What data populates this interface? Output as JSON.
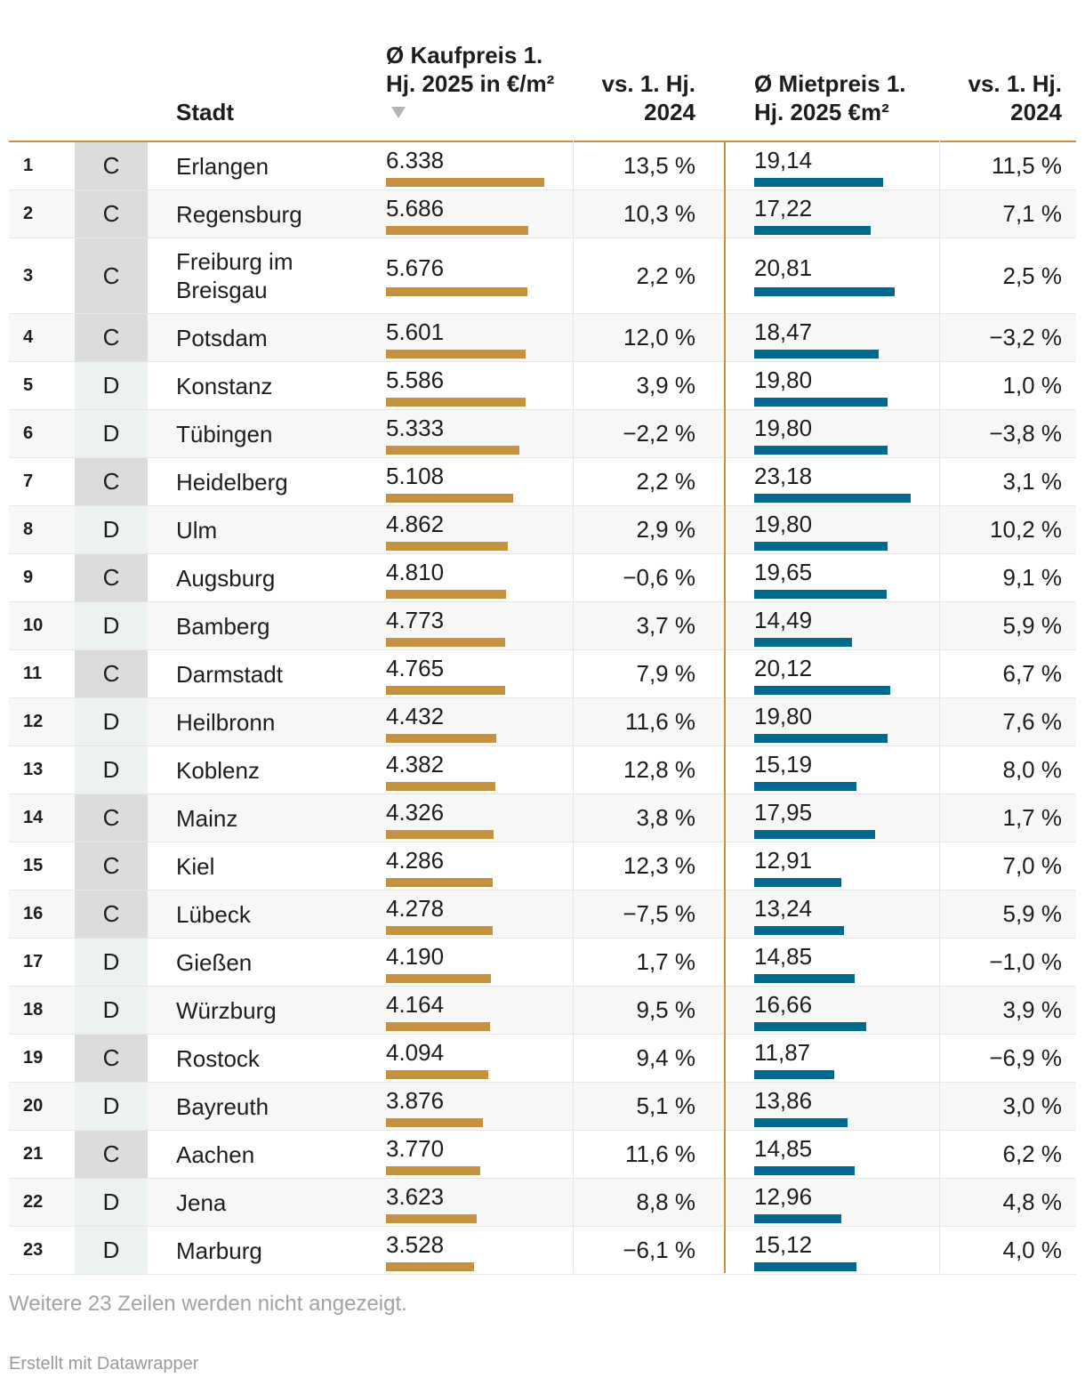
{
  "headers": {
    "stadt": "Stadt",
    "kauf": "Ø Kaufpreis 1. Hj. 2025 in €/m²",
    "vs1": "vs. 1. Hj. 2024",
    "miet": "Ø Mietpreis 1. Hj. 2025 €m²",
    "vs2": "vs. 1. Hj. 2024",
    "sort_icon": "sort-descending-triangle-icon"
  },
  "footer": {
    "note": "Weitere 23 Zeilen werden nicht angezeigt.",
    "credit": "Erstellt mit Datawrapper"
  },
  "colors": {
    "kauf_bar": "#c5933f",
    "miet_bar": "#006a8e",
    "class_C": "#dcdcdc",
    "class_D": "#ecf1f2"
  },
  "chart_data": {
    "type": "table",
    "columns": [
      "",
      "",
      "Stadt",
      "Ø Kaufpreis 1. Hj. 2025 in €/m²",
      "vs. 1. Hj. 2024",
      "Ø Mietpreis 1. Hj. 2025 €m²",
      "vs. 1. Hj. 2024"
    ],
    "kauf_scale_max": 6338,
    "miet_scale_max": 23.18,
    "rows": [
      {
        "rank": "1",
        "cls": "C",
        "city": "Erlangen",
        "kauf": "6.338",
        "kauf_value": 6338,
        "vs1": "13,5 %",
        "miet": "19,14",
        "miet_value": 19.14,
        "vs2": "11,5 %"
      },
      {
        "rank": "2",
        "cls": "C",
        "city": "Regensburg",
        "kauf": "5.686",
        "kauf_value": 5686,
        "vs1": "10,3 %",
        "miet": "17,22",
        "miet_value": 17.22,
        "vs2": "7,1 %"
      },
      {
        "rank": "3",
        "cls": "C",
        "city": "Freiburg im Breisgau",
        "kauf": "5.676",
        "kauf_value": 5676,
        "vs1": "2,2 %",
        "miet": "20,81",
        "miet_value": 20.81,
        "vs2": "2,5 %"
      },
      {
        "rank": "4",
        "cls": "C",
        "city": "Potsdam",
        "kauf": "5.601",
        "kauf_value": 5601,
        "vs1": "12,0 %",
        "miet": "18,47",
        "miet_value": 18.47,
        "vs2": "−3,2 %"
      },
      {
        "rank": "5",
        "cls": "D",
        "city": "Konstanz",
        "kauf": "5.586",
        "kauf_value": 5586,
        "vs1": "3,9 %",
        "miet": "19,80",
        "miet_value": 19.8,
        "vs2": "1,0 %"
      },
      {
        "rank": "6",
        "cls": "D",
        "city": "Tübingen",
        "kauf": "5.333",
        "kauf_value": 5333,
        "vs1": "−2,2 %",
        "miet": "19,80",
        "miet_value": 19.8,
        "vs2": "−3,8 %"
      },
      {
        "rank": "7",
        "cls": "C",
        "city": "Heidelberg",
        "kauf": "5.108",
        "kauf_value": 5108,
        "vs1": "2,2 %",
        "miet": "23,18",
        "miet_value": 23.18,
        "vs2": "3,1 %"
      },
      {
        "rank": "8",
        "cls": "D",
        "city": "Ulm",
        "kauf": "4.862",
        "kauf_value": 4862,
        "vs1": "2,9 %",
        "miet": "19,80",
        "miet_value": 19.8,
        "vs2": "10,2 %"
      },
      {
        "rank": "9",
        "cls": "C",
        "city": "Augsburg",
        "kauf": "4.810",
        "kauf_value": 4810,
        "vs1": "−0,6 %",
        "miet": "19,65",
        "miet_value": 19.65,
        "vs2": "9,1 %"
      },
      {
        "rank": "10",
        "cls": "D",
        "city": "Bamberg",
        "kauf": "4.773",
        "kauf_value": 4773,
        "vs1": "3,7 %",
        "miet": "14,49",
        "miet_value": 14.49,
        "vs2": "5,9 %"
      },
      {
        "rank": "11",
        "cls": "C",
        "city": "Darmstadt",
        "kauf": "4.765",
        "kauf_value": 4765,
        "vs1": "7,9 %",
        "miet": "20,12",
        "miet_value": 20.12,
        "vs2": "6,7 %"
      },
      {
        "rank": "12",
        "cls": "D",
        "city": "Heilbronn",
        "kauf": "4.432",
        "kauf_value": 4432,
        "vs1": "11,6 %",
        "miet": "19,80",
        "miet_value": 19.8,
        "vs2": "7,6 %"
      },
      {
        "rank": "13",
        "cls": "D",
        "city": "Koblenz",
        "kauf": "4.382",
        "kauf_value": 4382,
        "vs1": "12,8 %",
        "miet": "15,19",
        "miet_value": 15.19,
        "vs2": "8,0 %"
      },
      {
        "rank": "14",
        "cls": "C",
        "city": "Mainz",
        "kauf": "4.326",
        "kauf_value": 4326,
        "vs1": "3,8 %",
        "miet": "17,95",
        "miet_value": 17.95,
        "vs2": "1,7 %"
      },
      {
        "rank": "15",
        "cls": "C",
        "city": "Kiel",
        "kauf": "4.286",
        "kauf_value": 4286,
        "vs1": "12,3 %",
        "miet": "12,91",
        "miet_value": 12.91,
        "vs2": "7,0 %"
      },
      {
        "rank": "16",
        "cls": "C",
        "city": "Lübeck",
        "kauf": "4.278",
        "kauf_value": 4278,
        "vs1": "−7,5 %",
        "miet": "13,24",
        "miet_value": 13.24,
        "vs2": "5,9 %"
      },
      {
        "rank": "17",
        "cls": "D",
        "city": "Gießen",
        "kauf": "4.190",
        "kauf_value": 4190,
        "vs1": "1,7 %",
        "miet": "14,85",
        "miet_value": 14.85,
        "vs2": "−1,0 %"
      },
      {
        "rank": "18",
        "cls": "D",
        "city": "Würzburg",
        "kauf": "4.164",
        "kauf_value": 4164,
        "vs1": "9,5 %",
        "miet": "16,66",
        "miet_value": 16.66,
        "vs2": "3,9 %"
      },
      {
        "rank": "19",
        "cls": "C",
        "city": "Rostock",
        "kauf": "4.094",
        "kauf_value": 4094,
        "vs1": "9,4 %",
        "miet": "11,87",
        "miet_value": 11.87,
        "vs2": "−6,9 %"
      },
      {
        "rank": "20",
        "cls": "D",
        "city": "Bayreuth",
        "kauf": "3.876",
        "kauf_value": 3876,
        "vs1": "5,1 %",
        "miet": "13,86",
        "miet_value": 13.86,
        "vs2": "3,0 %"
      },
      {
        "rank": "21",
        "cls": "C",
        "city": "Aachen",
        "kauf": "3.770",
        "kauf_value": 3770,
        "vs1": "11,6 %",
        "miet": "14,85",
        "miet_value": 14.85,
        "vs2": "6,2 %"
      },
      {
        "rank": "22",
        "cls": "D",
        "city": "Jena",
        "kauf": "3.623",
        "kauf_value": 3623,
        "vs1": "8,8 %",
        "miet": "12,96",
        "miet_value": 12.96,
        "vs2": "4,8 %"
      },
      {
        "rank": "23",
        "cls": "D",
        "city": "Marburg",
        "kauf": "3.528",
        "kauf_value": 3528,
        "vs1": "−6,1 %",
        "miet": "15,12",
        "miet_value": 15.12,
        "vs2": "4,0 %"
      }
    ]
  }
}
